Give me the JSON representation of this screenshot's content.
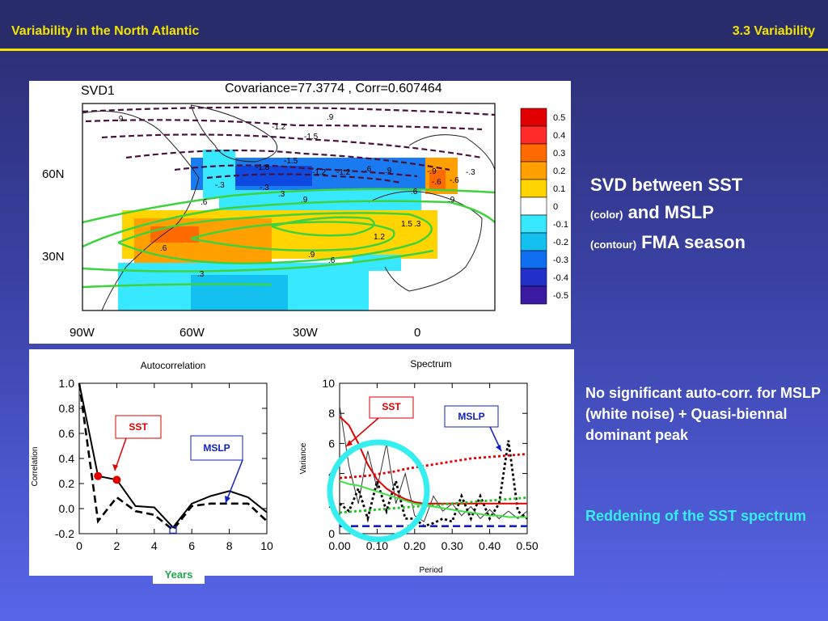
{
  "header": {
    "title": "Variability in the North Atlantic",
    "section": "3.3 Variability"
  },
  "map": {
    "label": "SVD1",
    "stats": "Covariance=77.3774 , Corr=0.607464",
    "lat_labels": [
      "60N",
      "30N"
    ],
    "lon_labels": [
      "90W",
      "60W",
      "30W",
      "0"
    ],
    "colorbar_labels": [
      "0.5",
      "0.4",
      "0.3",
      "0.2",
      "0.1",
      "0",
      "-0.1",
      "-0.2",
      "-0.3",
      "-0.4",
      "-0.5"
    ],
    "colorbar_colors": [
      "#e00000",
      "#ff2a2a",
      "#ff6a00",
      "#ffa000",
      "#ffd400",
      "#ffffff",
      "#38e8ff",
      "#14c0f0",
      "#0f6ef0",
      "#2030c8",
      "#3a1aa0"
    ],
    "contour_labels": [
      ".9",
      "-1.2",
      "-1.5",
      ".9",
      "-1.2",
      "-1.8",
      "-1.5",
      "-1.2",
      ".9",
      ".6",
      "-.9",
      "-.6",
      "-.3",
      "-.3",
      ".3",
      ".9",
      ".6",
      ".6",
      ".3",
      ".9",
      ".6",
      "1.2",
      "1.5",
      ".6",
      ".9",
      ".3",
      "-.3",
      "-.6"
    ]
  },
  "side": {
    "svd_line1": "SVD between SST",
    "svd_color": "(color)",
    "svd_and": " and MSLP",
    "svd_contour": "(contour)",
    "svd_season": " FMA season",
    "noauto": "No significant auto-corr. for MSLP (white noise) + Quasi-biennal dominant peak",
    "reddening": "Reddening of the SST spectrum"
  },
  "years_label": "Years",
  "chart_data": [
    {
      "type": "line",
      "title": "Autocorrelation",
      "xlabel": "",
      "ylabel": "Correlation",
      "xlim": [
        0,
        10
      ],
      "ylim": [
        -0.2,
        1.0
      ],
      "xticks": [
        "0",
        "2",
        "4",
        "6",
        "8",
        "10"
      ],
      "yticks": [
        "-0.2",
        "0.0",
        "0.2",
        "0.4",
        "0.6",
        "0.8",
        "1.0"
      ],
      "x": [
        0,
        1,
        2,
        3,
        4,
        5,
        6,
        7,
        8,
        9,
        10
      ],
      "series": [
        {
          "name": "SST",
          "style": "solid",
          "color": "#000000",
          "values": [
            1.0,
            0.26,
            0.23,
            0.02,
            0.01,
            -0.15,
            0.04,
            0.1,
            0.14,
            0.09,
            -0.03
          ]
        },
        {
          "name": "MSLP",
          "style": "dashed",
          "color": "#000000",
          "values": [
            1.0,
            -0.1,
            0.09,
            -0.02,
            -0.05,
            -0.17,
            0.02,
            0.04,
            0.04,
            0.04,
            -0.1
          ]
        }
      ],
      "markers": [
        {
          "x": 1,
          "y": 0.26
        },
        {
          "x": 2,
          "y": 0.23
        }
      ],
      "annotations": [
        {
          "text": "SST",
          "color": "#e00000"
        },
        {
          "text": "MSLP",
          "color": "#1020c0"
        }
      ]
    },
    {
      "type": "line",
      "title": "Spectrum",
      "xlabel": "Period",
      "ylabel": "Variance",
      "xlim": [
        0,
        0.5
      ],
      "ylim": [
        0,
        10
      ],
      "xticks": [
        "0.00",
        "0.10",
        "0.20",
        "0.30",
        "0.40",
        "0.50"
      ],
      "yticks": [
        "0",
        "2",
        "4",
        "6",
        "8",
        "10"
      ],
      "x": [
        0.0,
        0.025,
        0.05,
        0.075,
        0.1,
        0.125,
        0.15,
        0.175,
        0.2,
        0.225,
        0.25,
        0.275,
        0.3,
        0.325,
        0.35,
        0.375,
        0.4,
        0.425,
        0.45,
        0.475,
        0.5
      ],
      "series": [
        {
          "name": "SST",
          "style": "thin",
          "color": "#333333",
          "values": [
            8.5,
            4.5,
            2.0,
            5.5,
            3.0,
            6.0,
            2.0,
            4.0,
            1.2,
            0.8,
            2.5,
            1.5,
            2.0,
            1.2,
            1.8,
            1.0,
            1.6,
            1.0,
            1.5,
            1.0,
            1.5
          ]
        },
        {
          "name": "MSLP",
          "style": "dotted",
          "color": "#000000",
          "values": [
            2.0,
            1.5,
            3.0,
            1.0,
            3.5,
            1.5,
            3.5,
            1.0,
            1.0,
            0.5,
            0.7,
            1.0,
            0.8,
            2.5,
            1.0,
            2.5,
            1.0,
            2.0,
            6.2,
            1.5,
            1.0
          ]
        },
        {
          "name": "SST red-noise fit",
          "style": "solid",
          "color": "#e00000",
          "values": [
            7.8,
            7.2,
            6.0,
            4.6,
            3.6,
            3.0,
            2.6,
            2.3,
            2.1,
            2.0,
            2.0,
            2.0,
            2.0,
            2.0,
            2.0,
            2.0,
            2.0,
            2.0,
            2.0,
            2.0,
            2.0
          ]
        },
        {
          "name": "significance",
          "style": "dotted",
          "color": "#e00000",
          "values": [
            3.7,
            3.75,
            3.8,
            3.85,
            3.95,
            4.05,
            4.15,
            4.3,
            4.4,
            4.5,
            4.6,
            4.7,
            4.8,
            4.9,
            5.0,
            5.05,
            5.1,
            5.15,
            5.2,
            5.25,
            5.3
          ]
        },
        {
          "name": "MSLP significance",
          "style": "dotted",
          "color": "#20c020",
          "values": [
            1.4,
            1.45,
            1.5,
            1.55,
            1.6,
            1.65,
            1.7,
            1.75,
            1.8,
            1.85,
            1.9,
            1.95,
            2.0,
            2.05,
            2.1,
            2.15,
            2.2,
            2.25,
            2.3,
            2.35,
            2.4
          ]
        },
        {
          "name": "SST green",
          "style": "solid",
          "color": "#40e040",
          "values": [
            3.5,
            3.3,
            3.2,
            3.0,
            2.8,
            2.6,
            2.4,
            2.2,
            2.0,
            1.9,
            1.8,
            1.7,
            1.6,
            1.5,
            1.4,
            1.3,
            1.2,
            1.2,
            1.1,
            1.1,
            1.1
          ]
        },
        {
          "name": "MSLP mean",
          "style": "dashed",
          "color": "#1020c0",
          "values": [
            0.5,
            0.5,
            0.5,
            0.5,
            0.5,
            0.5,
            0.5,
            0.5,
            0.5,
            0.5,
            0.5,
            0.5,
            0.5,
            0.5,
            0.5,
            0.5,
            0.5,
            0.5,
            0.5,
            0.5,
            0.5
          ]
        }
      ],
      "annotations": [
        {
          "text": "SST",
          "color": "#e00000"
        },
        {
          "text": "MSLP",
          "color": "#1020c0"
        }
      ]
    }
  ]
}
